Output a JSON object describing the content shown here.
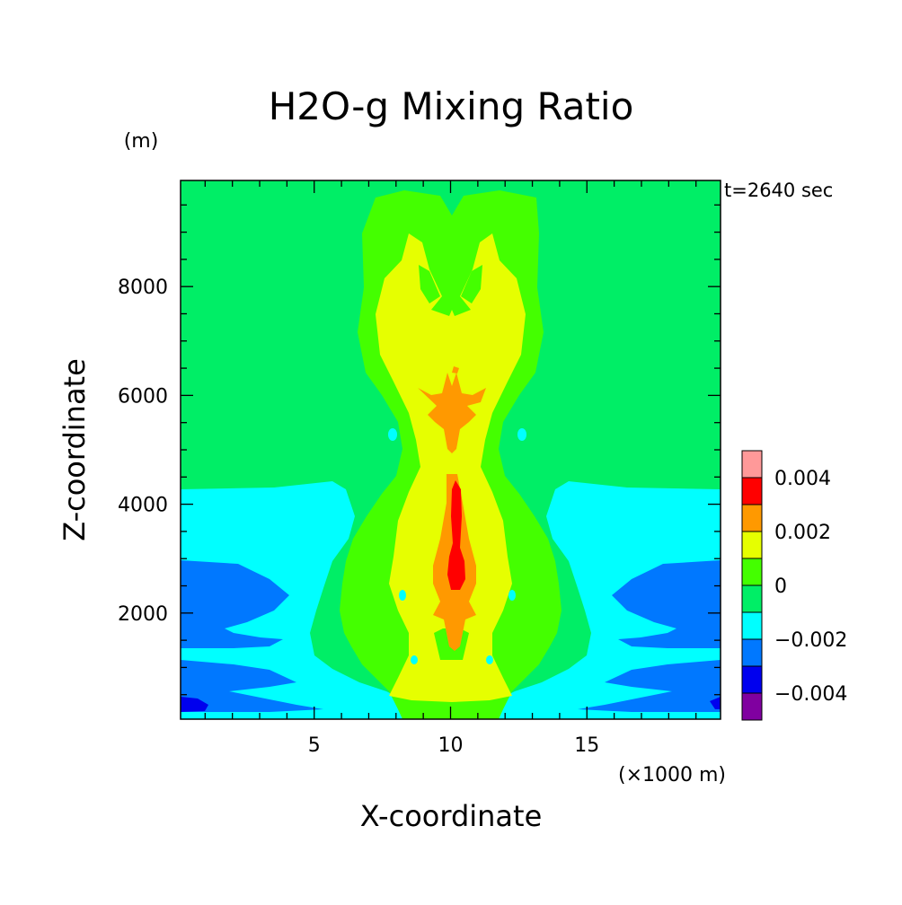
{
  "chart_data": {
    "type": "heatmap",
    "title": "H2O-g Mixing Ratio",
    "time_label": "t=2640 sec",
    "xlabel": "X-coordinate",
    "ylabel": "Z-coordinate",
    "x_unit": "(×1000 m)",
    "y_unit": "(m)",
    "xlim": [
      0.1,
      19.9
    ],
    "ylim": [
      50,
      9950
    ],
    "x_ticks": [
      5,
      10,
      15
    ],
    "y_ticks": [
      2000,
      4000,
      6000,
      8000
    ],
    "x_tick_labels": [
      "5",
      "10",
      "15"
    ],
    "y_tick_labels": [
      "2000",
      "4000",
      "6000",
      "8000"
    ],
    "colorbar": {
      "levels": [
        -0.005,
        -0.004,
        -0.003,
        -0.002,
        -0.001,
        0,
        0.001,
        0.002,
        0.003,
        0.004,
        0.005
      ],
      "colors": [
        "#8000a0",
        "#0000ee",
        "#0078ff",
        "#00ffff",
        "#00ee66",
        "#44ff00",
        "#e6ff00",
        "#ff9900",
        "#ff0000",
        "#ff9999"
      ],
      "tick_values": [
        0.004,
        0.002,
        0,
        -0.002,
        -0.004
      ],
      "tick_labels": [
        "0.004",
        "0.002",
        "0",
        "−0.002",
        "−0.004"
      ]
    },
    "regions": [
      {
        "level": "-0.002 to -0.001",
        "x_range": [
          0.1,
          6.2
        ],
        "z_range": [
          100,
          4300
        ],
        "mirror": true
      },
      {
        "level": "-0.003 to -0.002",
        "x_range": [
          0.1,
          4.0
        ],
        "z_range": [
          400,
          2950
        ],
        "mirror": true
      },
      {
        "level": "-0.004 to -0.003",
        "x_range": [
          0.1,
          1.0
        ],
        "z_range": [
          150,
          450
        ],
        "mirror": true
      },
      {
        "level": "0 to 0.001",
        "x_range": [
          5.5,
          14.5
        ],
        "z_range": [
          50,
          9950
        ]
      },
      {
        "level": "0.001 to 0.002",
        "x_range": [
          7.5,
          12.5
        ],
        "z_range": [
          300,
          8900
        ]
      },
      {
        "level": "0.002 to 0.003",
        "x_range": [
          9.4,
          11.0
        ],
        "z_range": [
          1300,
          6500
        ]
      },
      {
        "level": "0.003 to 0.004",
        "x_range": [
          9.9,
          10.4
        ],
        "z_range": [
          2400,
          4400
        ]
      }
    ]
  }
}
